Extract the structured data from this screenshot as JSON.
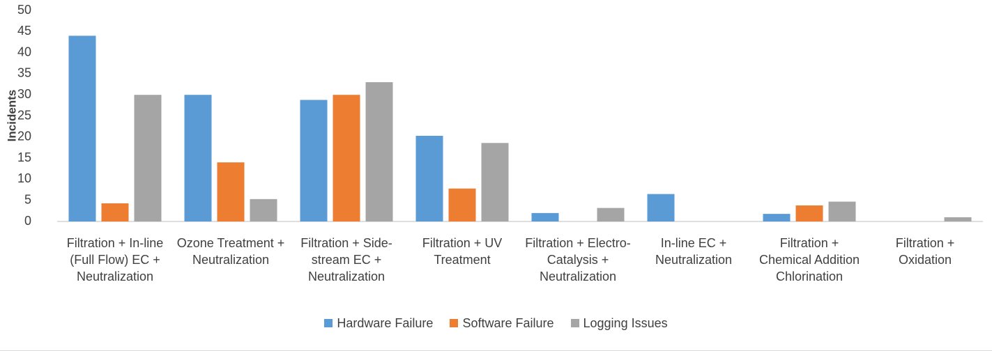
{
  "chart_data": {
    "type": "bar",
    "y_label": "Incidents",
    "categories": [
      "Filtration + In-line (Full Flow) EC + Neutralization",
      "Ozone Treatment + Neutralization",
      "Filtration + Side-stream EC + Neutralization",
      "Filtration + UV Treatment",
      "Filtration + Electro-Catalysis + Neutralization",
      "In-line EC + Neutralization",
      "Filtration + Chemical Addition Chlorination",
      "Filtration + Oxidation"
    ],
    "series": [
      {
        "name": "Hardware Failure",
        "color": "#5b9bd5",
        "values": [
          44,
          30,
          28.8,
          20.3,
          2,
          6.5,
          1.8,
          0
        ]
      },
      {
        "name": "Software Failure",
        "color": "#ed7d31",
        "values": [
          4.3,
          14,
          30,
          7.8,
          0,
          0,
          3.8,
          0
        ]
      },
      {
        "name": "Logging Issues",
        "color": "#a5a5a5",
        "values": [
          30,
          5.3,
          33,
          18.6,
          3.2,
          0,
          4.7,
          1
        ]
      }
    ],
    "ylim": [
      0,
      50
    ],
    "yticks": [
      0,
      5,
      10,
      15,
      20,
      25,
      30,
      35,
      40,
      45,
      50
    ],
    "grid": false,
    "legend": "bottom"
  }
}
